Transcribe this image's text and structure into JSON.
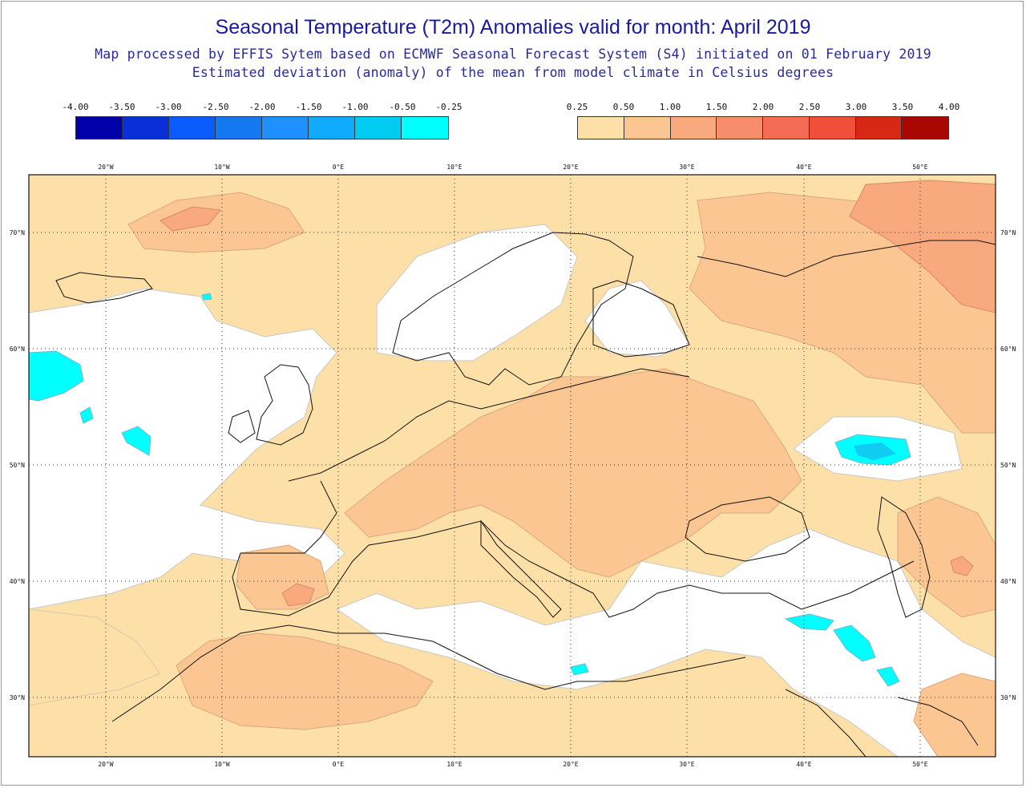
{
  "title": "Seasonal Temperature (T2m) Anomalies valid for month: April 2019",
  "subtitle1": "Map processed by EFFIS Sytem based on ECMWF Seasonal Forecast System (S4) initiated on 01 February 2019",
  "subtitle2": "Estimated deviation (anomaly) of the mean from model climate in Celsius degrees",
  "legend_negative": {
    "labels": [
      "-4.00",
      "-3.50",
      "-3.00",
      "-2.50",
      "-2.00",
      "-1.50",
      "-1.00",
      "-0.50",
      "-0.25"
    ],
    "colors": [
      "#0000a8",
      "#0a2fd8",
      "#0a5cff",
      "#1478f0",
      "#1e90ff",
      "#10aaff",
      "#00ccf2",
      "#00ffff"
    ]
  },
  "legend_positive": {
    "labels": [
      "0.25",
      "0.50",
      "1.00",
      "1.50",
      "2.00",
      "2.50",
      "3.00",
      "3.50",
      "4.00"
    ],
    "colors": [
      "#fde0a8",
      "#fcc693",
      "#f9a97e",
      "#f68d6d",
      "#f66b55",
      "#f04f3a",
      "#d92716",
      "#a80800"
    ]
  },
  "map": {
    "lon_ticks": [
      "20°W",
      "10°W",
      "0°E",
      "10°E",
      "20°E",
      "30°E",
      "40°E",
      "50°E"
    ],
    "lat_ticks": [
      "70°N",
      "60°N",
      "50°N",
      "40°N",
      "30°N"
    ],
    "ocean_color": "#ffffff",
    "coast_color": "#111111"
  }
}
